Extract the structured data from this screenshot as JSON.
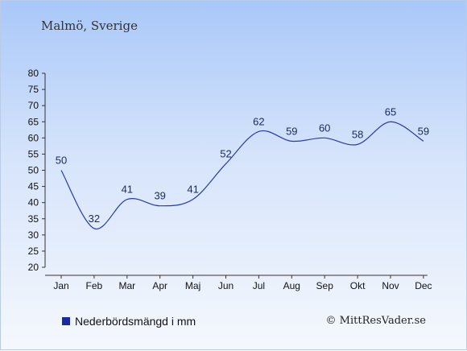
{
  "chart_data": {
    "type": "line",
    "title": "Malmö, Sverige",
    "categories": [
      "Jan",
      "Feb",
      "Mar",
      "Apr",
      "Maj",
      "Jun",
      "Jul",
      "Aug",
      "Sep",
      "Okt",
      "Nov",
      "Dec"
    ],
    "series": [
      {
        "name": "Nederbördsmängd i mm",
        "values": [
          50,
          32,
          41,
          39,
          41,
          52,
          62,
          59,
          60,
          58,
          65,
          59
        ]
      }
    ],
    "ylim": [
      20,
      80
    ],
    "yticks": [
      20,
      25,
      30,
      35,
      40,
      45,
      50,
      55,
      60,
      65,
      70,
      75,
      80
    ],
    "grid": false,
    "legend_position": "bottom-left",
    "line_color": "#2a3aa8",
    "swatch_color": "#1a2aa0"
  },
  "copyright": "© MittResVader.se"
}
